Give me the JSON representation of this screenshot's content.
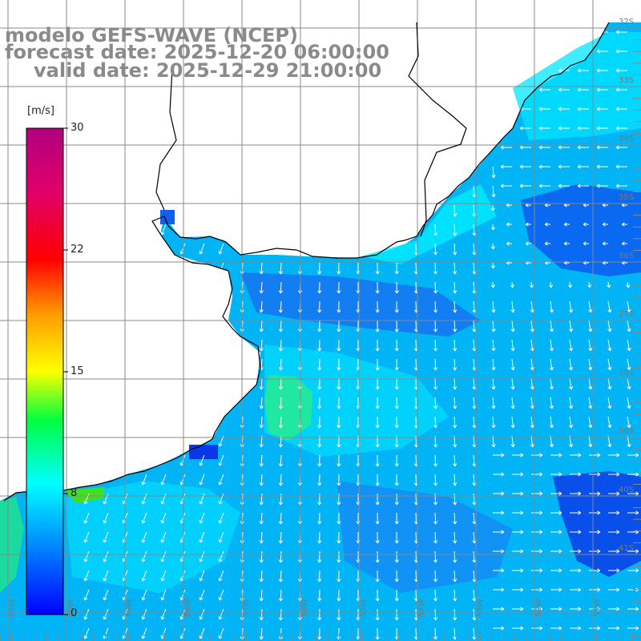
{
  "title": {
    "model": "modelo GEFS-WAVE (NCEP)",
    "forecast": "forecast date: 2025-12-20 06:00:00",
    "valid": "valid date: 2025-12-29 21:00:00"
  },
  "colorbar": {
    "unit": "[m/s]",
    "min": 0,
    "max": 30,
    "tick_labels": [
      "30",
      "22",
      "15",
      "8",
      "0"
    ],
    "colors": [
      "#0000ff",
      "#00aaff",
      "#00ffff",
      "#00ff00",
      "#ffff00",
      "#ff9900",
      "#ff0000",
      "#e00070",
      "#b0007f"
    ]
  },
  "lat_labels": [
    "32S",
    "33S",
    "34S",
    "35S",
    "36S",
    "37S",
    "38S",
    "39S",
    "40S",
    "41S"
  ],
  "lon_labels": [
    "61W",
    "60W",
    "59W",
    "58W",
    "57W",
    "56W",
    "55W",
    "54W",
    "53W",
    "52W",
    "51W"
  ],
  "background_colors": {
    "land": "#ffffff",
    "coast": "#000000",
    "grid": "#888888",
    "arrow": "#ffffff"
  }
}
